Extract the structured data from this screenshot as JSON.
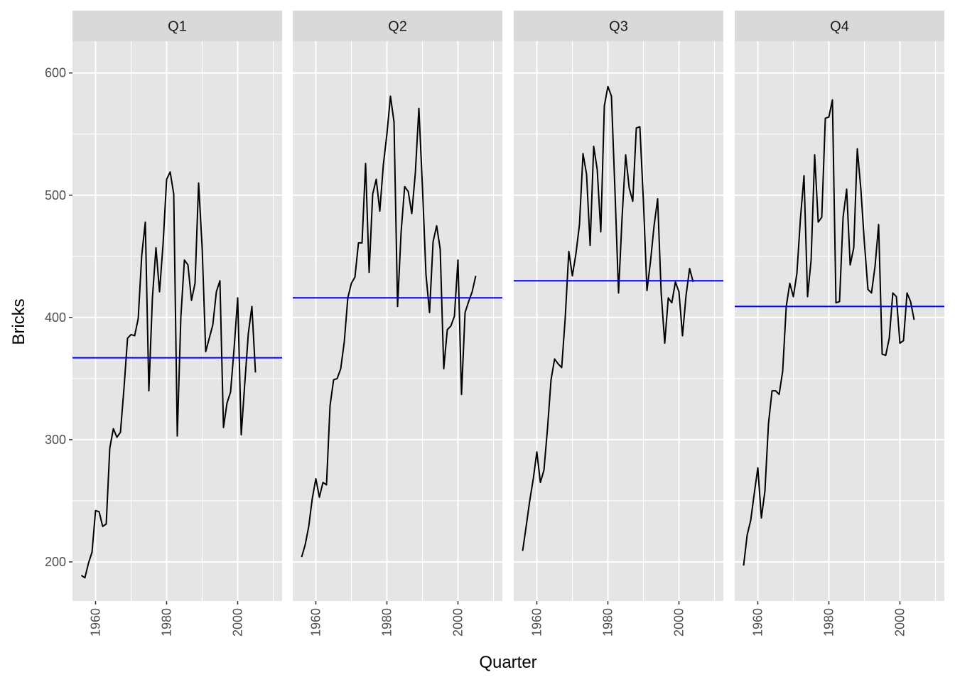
{
  "chart_data": {
    "type": "line",
    "xlabel": "Quarter",
    "ylabel": "Bricks",
    "ylim": [
      168,
      626
    ],
    "xlim": [
      1953.5,
      2012.5
    ],
    "y_ticks": [
      200,
      300,
      400,
      500,
      600
    ],
    "x_ticks": [
      1960,
      1980,
      2000
    ],
    "grid": true,
    "colors": {
      "series": "#000000",
      "mean_line": "#0000ff",
      "panel_bg": "#e5e5e5",
      "strip_bg": "#d9d9d9",
      "grid": "#ffffff"
    },
    "panels": [
      {
        "label": "Q1",
        "mean": 367,
        "x": [
          1956,
          1957,
          1958,
          1959,
          1960,
          1961,
          1962,
          1963,
          1964,
          1965,
          1966,
          1967,
          1968,
          1969,
          1970,
          1971,
          1972,
          1973,
          1974,
          1975,
          1976,
          1977,
          1978,
          1979,
          1980,
          1981,
          1982,
          1983,
          1984,
          1985,
          1986,
          1987,
          1988,
          1989,
          1990,
          1991,
          1992,
          1993,
          1994,
          1995,
          1996,
          1997,
          1998,
          1999,
          2000,
          2001,
          2002,
          2003,
          2004,
          2005
        ],
        "y": [
          189,
          187,
          199,
          208,
          242,
          241,
          229,
          231,
          293,
          309,
          302,
          306,
          342,
          383,
          386,
          385,
          399,
          451,
          478,
          340,
          416,
          457,
          421,
          460,
          513,
          519,
          501,
          303,
          400,
          447,
          443,
          414,
          428,
          510,
          457,
          372,
          383,
          394,
          421,
          430,
          310,
          330,
          339,
          375,
          416,
          304,
          346,
          387,
          409,
          355
        ]
      },
      {
        "label": "Q2",
        "mean": 416,
        "x": [
          1956,
          1957,
          1958,
          1959,
          1960,
          1961,
          1962,
          1963,
          1964,
          1965,
          1966,
          1967,
          1968,
          1969,
          1970,
          1971,
          1972,
          1973,
          1974,
          1975,
          1976,
          1977,
          1978,
          1979,
          1980,
          1981,
          1982,
          1983,
          1984,
          1985,
          1986,
          1987,
          1988,
          1989,
          1990,
          1991,
          1992,
          1993,
          1994,
          1995,
          1996,
          1997,
          1998,
          1999,
          2000,
          2001,
          2002,
          2003,
          2004,
          2005
        ],
        "y": [
          204,
          214,
          229,
          252,
          268,
          253,
          265,
          263,
          328,
          349,
          350,
          358,
          380,
          416,
          428,
          433,
          461,
          461,
          526,
          437,
          501,
          513,
          487,
          525,
          550,
          581,
          560,
          409,
          470,
          507,
          503,
          485,
          518,
          571,
          507,
          435,
          404,
          462,
          475,
          456,
          358,
          390,
          393,
          401,
          447,
          337,
          404,
          413,
          421,
          434
        ]
      },
      {
        "label": "Q3",
        "mean": 430,
        "x": [
          1956,
          1957,
          1958,
          1959,
          1960,
          1961,
          1962,
          1963,
          1964,
          1965,
          1966,
          1967,
          1968,
          1969,
          1970,
          1971,
          1972,
          1973,
          1974,
          1975,
          1976,
          1977,
          1978,
          1979,
          1980,
          1981,
          1982,
          1983,
          1984,
          1985,
          1986,
          1987,
          1988,
          1989,
          1990,
          1991,
          1992,
          1993,
          1994,
          1995,
          1996,
          1997,
          1998,
          1999,
          2000,
          2001,
          2002,
          2003,
          2004
        ],
        "y": [
          209,
          229,
          250,
          268,
          290,
          265,
          275,
          309,
          349,
          366,
          362,
          359,
          400,
          454,
          434,
          452,
          476,
          534,
          517,
          459,
          540,
          521,
          470,
          573,
          589,
          581,
          503,
          420,
          482,
          533,
          506,
          495,
          555,
          556,
          495,
          422,
          446,
          475,
          497,
          420,
          379,
          416,
          412,
          429,
          421,
          385,
          418,
          440,
          429
        ]
      },
      {
        "label": "Q4",
        "mean": 409,
        "x": [
          1956,
          1957,
          1958,
          1959,
          1960,
          1961,
          1962,
          1963,
          1964,
          1965,
          1966,
          1967,
          1968,
          1969,
          1970,
          1971,
          1972,
          1973,
          1974,
          1975,
          1976,
          1977,
          1978,
          1979,
          1980,
          1981,
          1982,
          1983,
          1984,
          1985,
          1986,
          1987,
          1988,
          1989,
          1990,
          1991,
          1992,
          1993,
          1994,
          1995,
          1996,
          1997,
          1998,
          1999,
          2000,
          2001,
          2002,
          2003,
          2004
        ],
        "y": [
          197,
          222,
          234,
          256,
          277,
          236,
          258,
          313,
          340,
          340,
          337,
          356,
          409,
          428,
          417,
          436,
          481,
          516,
          417,
          447,
          533,
          478,
          482,
          563,
          564,
          578,
          412,
          413,
          482,
          505,
          443,
          457,
          538,
          505,
          461,
          423,
          420,
          442,
          476,
          370,
          369,
          383,
          420,
          417,
          379,
          381,
          420,
          413,
          398
        ]
      }
    ]
  }
}
